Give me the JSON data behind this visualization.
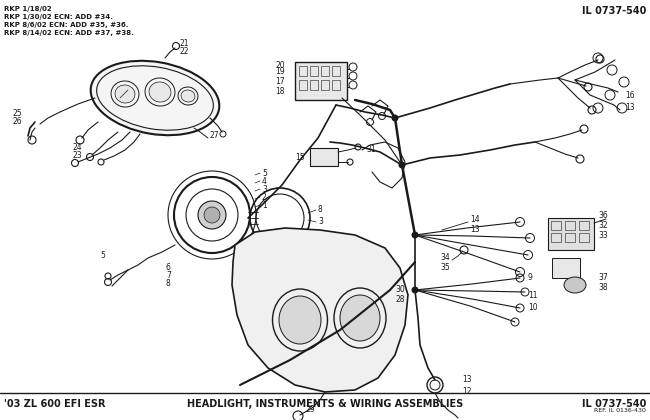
{
  "title_top_right": "IL 0737-540",
  "title_top_left_lines": [
    "RKP 1/18/02",
    "RKP 1/30/02 ECN: ADD #34.",
    "RKP 8/6/02 ECN: ADD #35, #36.",
    "RKP 8/14/02 ECN: ADD #37, #38."
  ],
  "bottom_left": "'03 ZL 600 EFI ESR",
  "bottom_center": "HEADLIGHT, INSTRUMENTS & WIRING ASSEMBLIES",
  "bottom_right": "IL 0737-540",
  "bottom_right_sub": "REF. IL 0136-430",
  "bg_color": "#ffffff",
  "text_color": "#1a1a1a",
  "fig_width": 6.5,
  "fig_height": 4.2,
  "dpi": 100
}
